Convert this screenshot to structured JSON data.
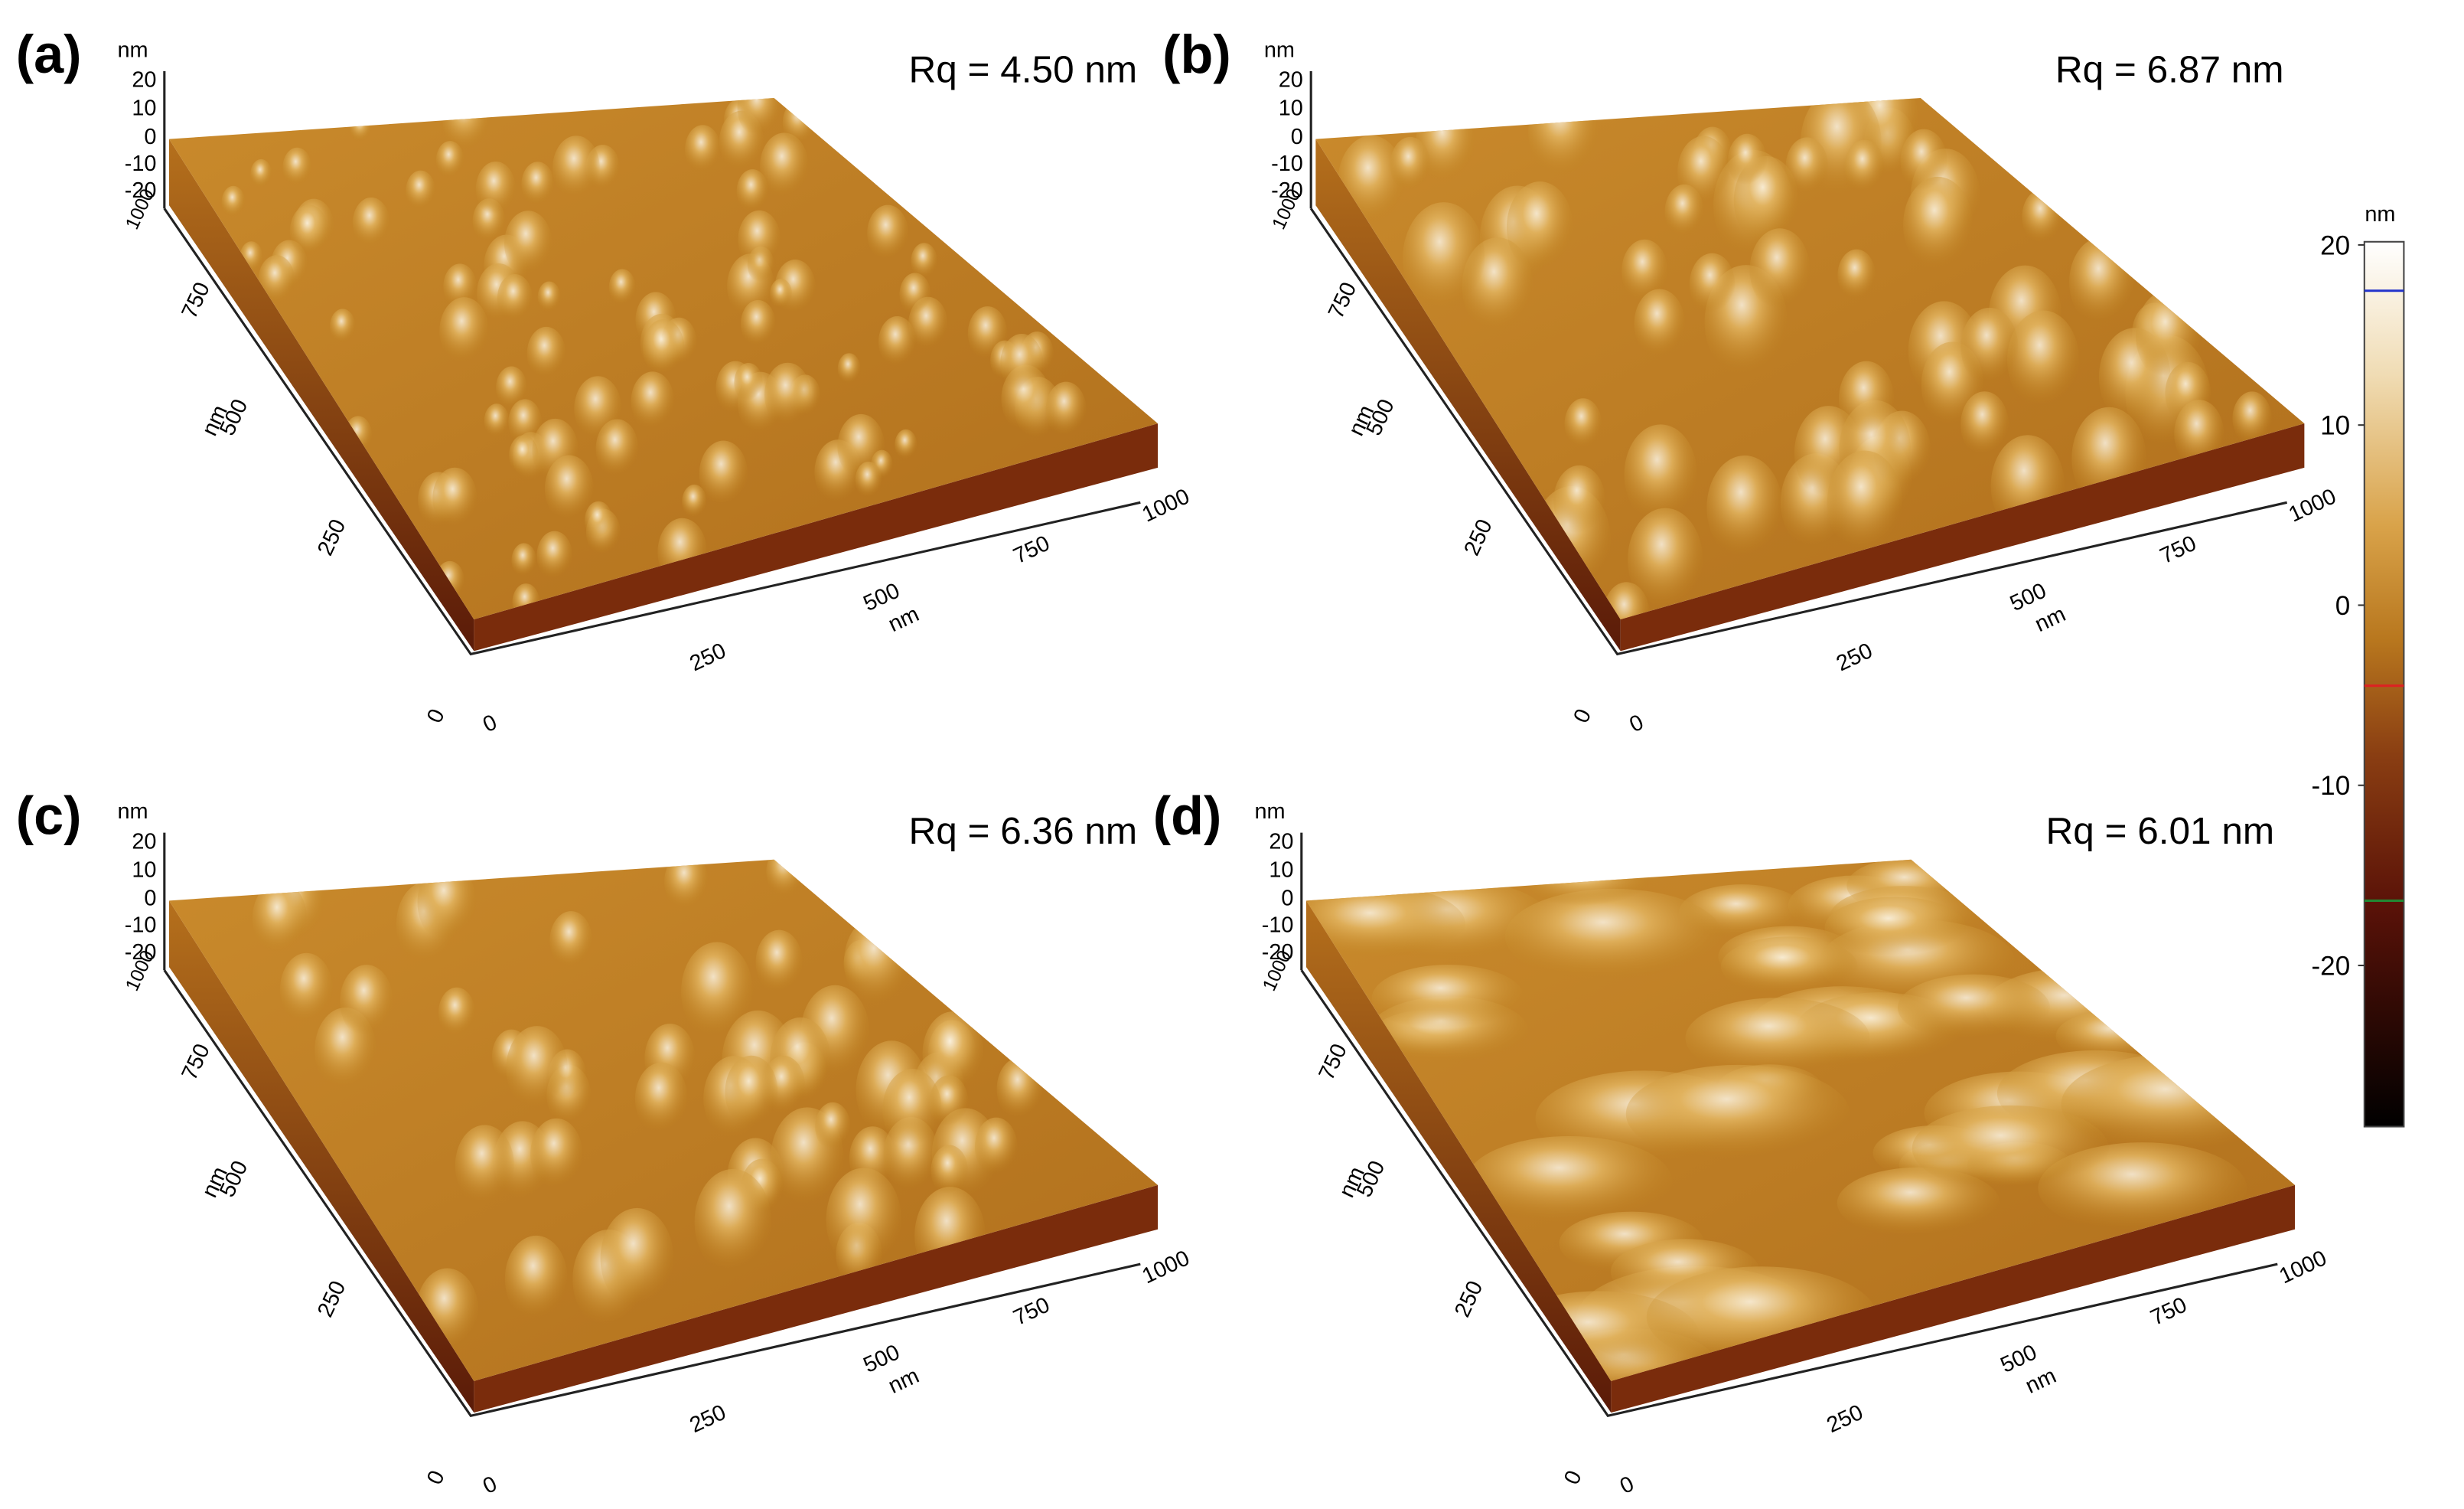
{
  "panels": [
    {
      "label": "(a)",
      "rq": "Rq = 4.50 nm",
      "z_unit": "nm",
      "z_ticks": [
        20,
        10,
        0,
        -10,
        -20
      ],
      "y_unit": "nm",
      "y_ticks": [
        1000,
        750,
        500,
        250,
        0
      ],
      "x_unit": "nm",
      "x_ticks": [
        0,
        250,
        500,
        750,
        1000
      ]
    },
    {
      "label": "(b)",
      "rq": "Rq = 6.87 nm",
      "z_unit": "nm",
      "z_ticks": [
        20,
        10,
        0,
        -10,
        -20
      ],
      "y_unit": "nm",
      "y_ticks": [
        1000,
        750,
        500,
        250,
        0
      ],
      "x_unit": "nm",
      "x_ticks": [
        0,
        250,
        500,
        750,
        1000
      ]
    },
    {
      "label": "(c)",
      "rq": "Rq = 6.36 nm",
      "z_unit": "nm",
      "z_ticks": [
        20,
        10,
        0,
        -10,
        -20
      ],
      "y_unit": "nm",
      "y_ticks": [
        1000,
        750,
        500,
        250,
        0
      ],
      "x_unit": "nm",
      "x_ticks": [
        0,
        250,
        500,
        750,
        1000
      ]
    },
    {
      "label": "(d)",
      "rq": "Rq = 6.01 nm",
      "z_unit": "nm",
      "z_ticks": [
        20,
        10,
        0,
        -10,
        -20
      ],
      "y_unit": "nm",
      "y_ticks": [
        1000,
        750,
        500,
        250,
        0
      ],
      "x_unit": "nm",
      "x_ticks": [
        0,
        250,
        500,
        750,
        1000
      ]
    }
  ],
  "colorbar": {
    "unit": "nm",
    "ticks": [
      20,
      10,
      0,
      -10,
      -20
    ]
  }
}
